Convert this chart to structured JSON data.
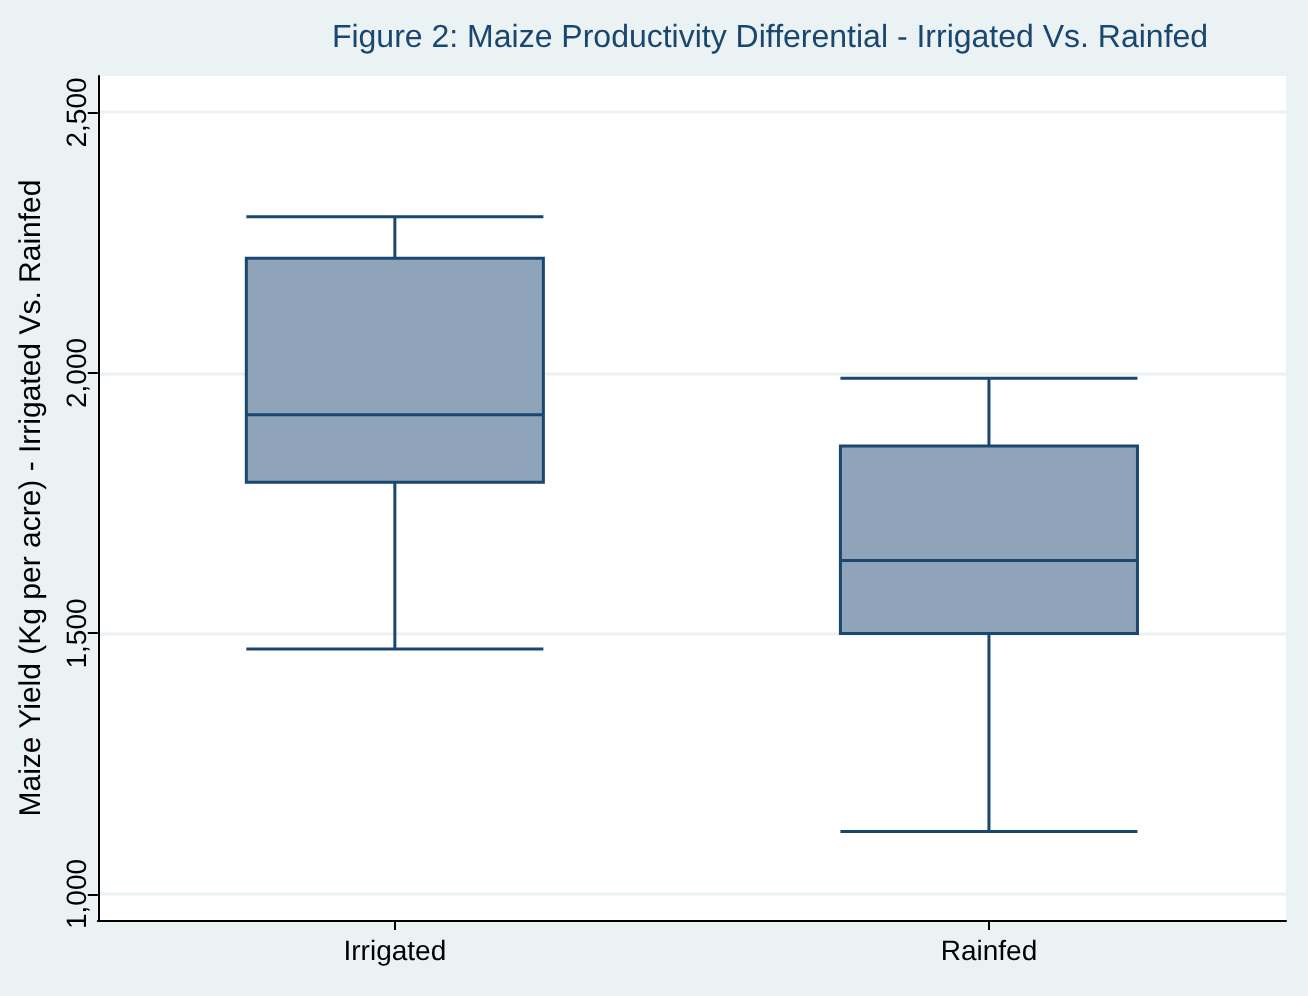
{
  "chart_data": {
    "type": "box",
    "title": "Figure 2: Maize Productivity Differential - Irrigated Vs. Rainfed",
    "ylabel": "Maize Yield (Kg per acre) - Irrigated Vs. Rainfed",
    "categories": [
      "Irrigated",
      "Rainfed"
    ],
    "boxes": [
      {
        "low": 1470,
        "q1": 1790,
        "median": 1920,
        "q3": 2220,
        "high": 2300
      },
      {
        "low": 1120,
        "q1": 1500,
        "median": 1640,
        "q3": 1860,
        "high": 1990
      }
    ],
    "color": "#8fa3b9",
    "ylim": [
      950,
      2570
    ],
    "yticks": [
      {
        "value": 1000,
        "label": "1,000"
      },
      {
        "value": 1500,
        "label": "1,500"
      },
      {
        "value": 2000,
        "label": "2,000"
      },
      {
        "value": 2500,
        "label": "2,500"
      }
    ],
    "grid": "y"
  }
}
